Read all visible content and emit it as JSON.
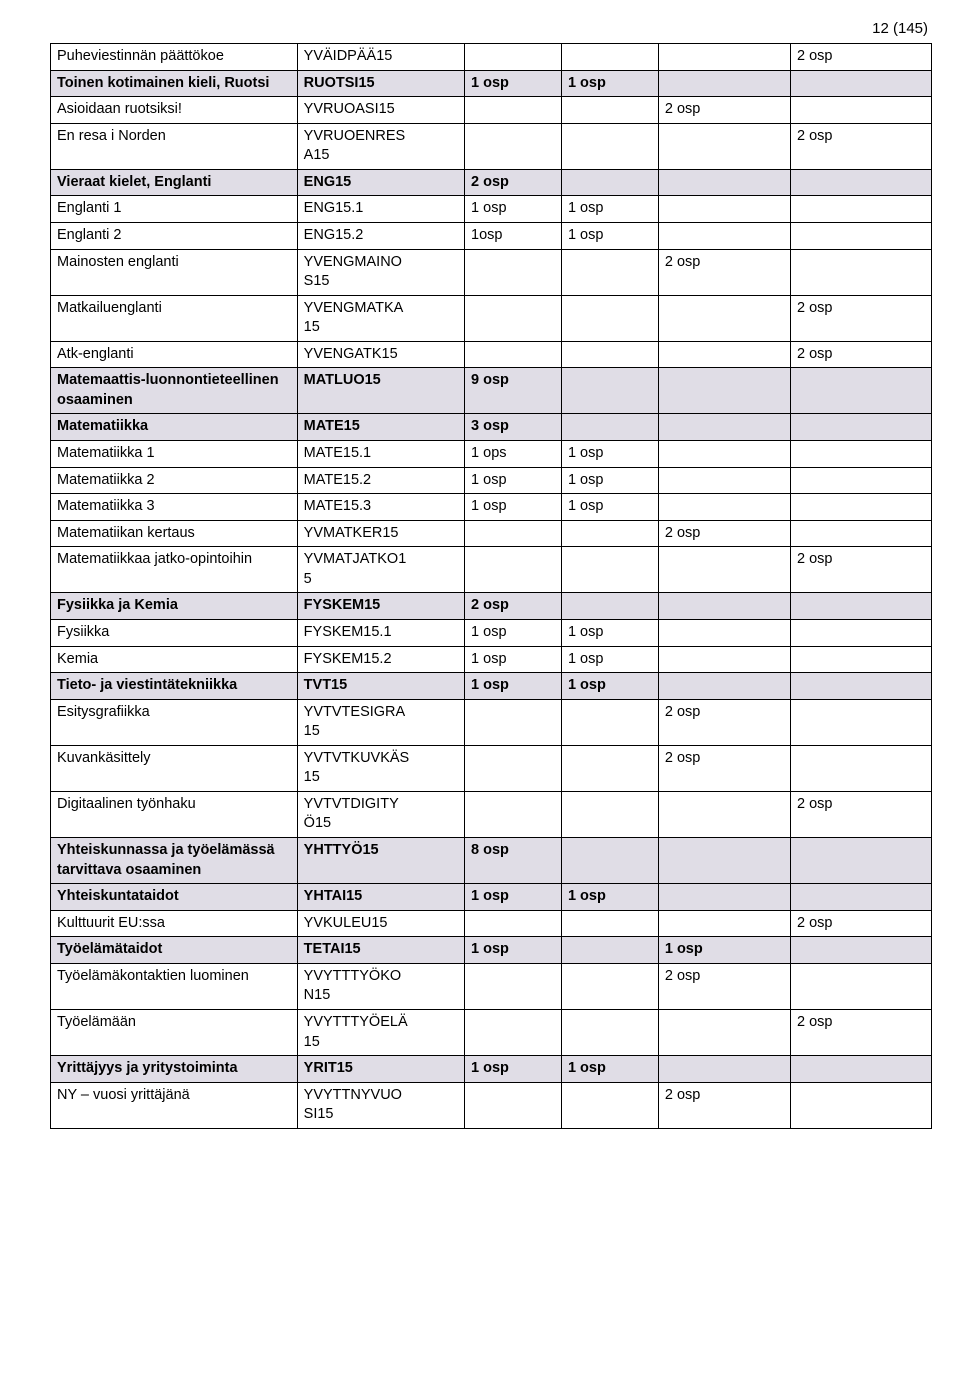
{
  "page_number": "12 (145)",
  "style": {
    "shade_bg": "#e0dde6",
    "border_color": "#000000",
    "font_color": "#000000",
    "base_font_size_pt": 11
  },
  "rows": [
    {
      "shade": false,
      "bold": false,
      "cells": [
        "Puheviestinnän päättökoe",
        "YVÄIDPÄÄ15",
        "",
        "",
        "",
        "2 osp"
      ]
    },
    {
      "shade": true,
      "bold": true,
      "cells": [
        "Toinen kotimainen kieli, Ruotsi",
        "RUOTSI15",
        "1 osp",
        "1 osp",
        "",
        ""
      ]
    },
    {
      "shade": false,
      "bold": false,
      "cells": [
        "Asioidaan ruotsiksi!",
        "YVRUOASI15",
        "",
        "",
        "2 osp",
        ""
      ]
    },
    {
      "shade": false,
      "bold": false,
      "cells": [
        "En resa i Norden",
        "YVRUOENRES\nA15",
        "",
        "",
        "",
        "2 osp"
      ]
    },
    {
      "shade": true,
      "bold": true,
      "cells": [
        "Vieraat kielet, Englanti",
        "ENG15",
        "2 osp",
        "",
        "",
        ""
      ]
    },
    {
      "shade": false,
      "bold": false,
      "cells": [
        "Englanti 1",
        "ENG15.1",
        "1 osp",
        "1 osp",
        "",
        ""
      ]
    },
    {
      "shade": false,
      "bold": false,
      "cells": [
        "Englanti 2",
        "ENG15.2",
        "1osp",
        "1 osp",
        "",
        ""
      ]
    },
    {
      "shade": false,
      "bold": false,
      "cells": [
        "Mainosten englanti",
        "YVENGMAINO\nS15",
        "",
        "",
        "2 osp",
        ""
      ]
    },
    {
      "shade": false,
      "bold": false,
      "cells": [
        "Matkailuenglanti",
        "YVENGMATKA\n15",
        "",
        "",
        "",
        "2 osp"
      ]
    },
    {
      "shade": false,
      "bold": false,
      "cells": [
        "Atk-englanti",
        "YVENGATK15",
        "",
        "",
        "",
        "2 osp"
      ]
    },
    {
      "shade": true,
      "bold": true,
      "cells": [
        "Matemaattis-luonnontieteellinen osaaminen",
        "MATLUO15",
        "9 osp",
        "",
        "",
        ""
      ]
    },
    {
      "shade": true,
      "bold": true,
      "cells": [
        "Matematiikka",
        "MATE15",
        "3 osp",
        "",
        "",
        ""
      ]
    },
    {
      "shade": false,
      "bold": false,
      "cells": [
        "Matematiikka 1",
        "MATE15.1",
        "1 ops",
        "1 osp",
        "",
        ""
      ]
    },
    {
      "shade": false,
      "bold": false,
      "cells": [
        "Matematiikka 2",
        "MATE15.2",
        "1 osp",
        "1 osp",
        "",
        ""
      ]
    },
    {
      "shade": false,
      "bold": false,
      "cells": [
        "Matematiikka 3",
        "MATE15.3",
        "1 osp",
        "1 osp",
        "",
        ""
      ]
    },
    {
      "shade": false,
      "bold": false,
      "cells": [
        "Matematiikan kertaus",
        "YVMATKER15",
        "",
        "",
        "2 osp",
        ""
      ]
    },
    {
      "shade": false,
      "bold": false,
      "cells": [
        "Matematiikkaa jatko-opintoihin",
        "YVMATJATKO1\n5",
        "",
        "",
        "",
        "2 osp"
      ]
    },
    {
      "shade": true,
      "bold": true,
      "cells": [
        "Fysiikka ja Kemia",
        "FYSKEM15",
        "2 osp",
        "",
        "",
        ""
      ]
    },
    {
      "shade": false,
      "bold": false,
      "cells": [
        "Fysiikka",
        "FYSKEM15.1",
        "1 osp",
        "1 osp",
        "",
        ""
      ]
    },
    {
      "shade": false,
      "bold": false,
      "cells": [
        "Kemia",
        "FYSKEM15.2",
        "1 osp",
        "1 osp",
        "",
        ""
      ]
    },
    {
      "shade": true,
      "bold": true,
      "cells": [
        "Tieto- ja viestintätekniikka",
        "TVT15",
        "1 osp",
        "1 osp",
        "",
        ""
      ]
    },
    {
      "shade": false,
      "bold": false,
      "cells": [
        "Esitysgrafiikka",
        "YVTVTESIGRA\n15",
        "",
        "",
        "2 osp",
        ""
      ]
    },
    {
      "shade": false,
      "bold": false,
      "cells": [
        "Kuvankäsittely",
        "YVTVTKUVKÄS\n15",
        "",
        "",
        "2 osp",
        ""
      ]
    },
    {
      "shade": false,
      "bold": false,
      "cells": [
        "Digitaalinen työnhaku",
        "YVTVTDIGITY\nÖ15",
        "",
        "",
        "",
        "2 osp"
      ]
    },
    {
      "shade": true,
      "bold": true,
      "cells": [
        "Yhteiskunnassa ja työelämässä tarvittava osaaminen",
        "YHTTYÖ15",
        "8 osp",
        "",
        "",
        ""
      ]
    },
    {
      "shade": true,
      "bold": true,
      "cells": [
        "Yhteiskuntataidot",
        "YHTAI15",
        "1 osp",
        "1 osp",
        "",
        ""
      ]
    },
    {
      "shade": false,
      "bold": false,
      "cells": [
        "Kulttuurit EU:ssa",
        "YVKULEU15",
        "",
        "",
        "",
        "2 osp"
      ]
    },
    {
      "shade": true,
      "bold": true,
      "cells": [
        "Työelämätaidot",
        "TETAI15",
        "1 osp",
        "",
        "1 osp",
        ""
      ]
    },
    {
      "shade": false,
      "bold": false,
      "cells": [
        "Työelämäkontaktien luominen",
        "YVYTTTYÖKO\nN15",
        "",
        "",
        "2 osp",
        ""
      ]
    },
    {
      "shade": false,
      "bold": false,
      "cells": [
        "Työelämään",
        "YVYTTTYÖELÄ\n15",
        "",
        "",
        "",
        "2 osp"
      ]
    },
    {
      "shade": true,
      "bold": true,
      "cells": [
        "Yrittäjyys ja yritystoiminta",
        "YRIT15",
        "1 osp",
        "1 osp",
        "",
        ""
      ]
    },
    {
      "shade": false,
      "bold": false,
      "cells": [
        "NY – vuosi yrittäjänä",
        "YVYTTNYVUO\nSI15",
        "",
        "",
        "2 osp",
        ""
      ]
    }
  ]
}
